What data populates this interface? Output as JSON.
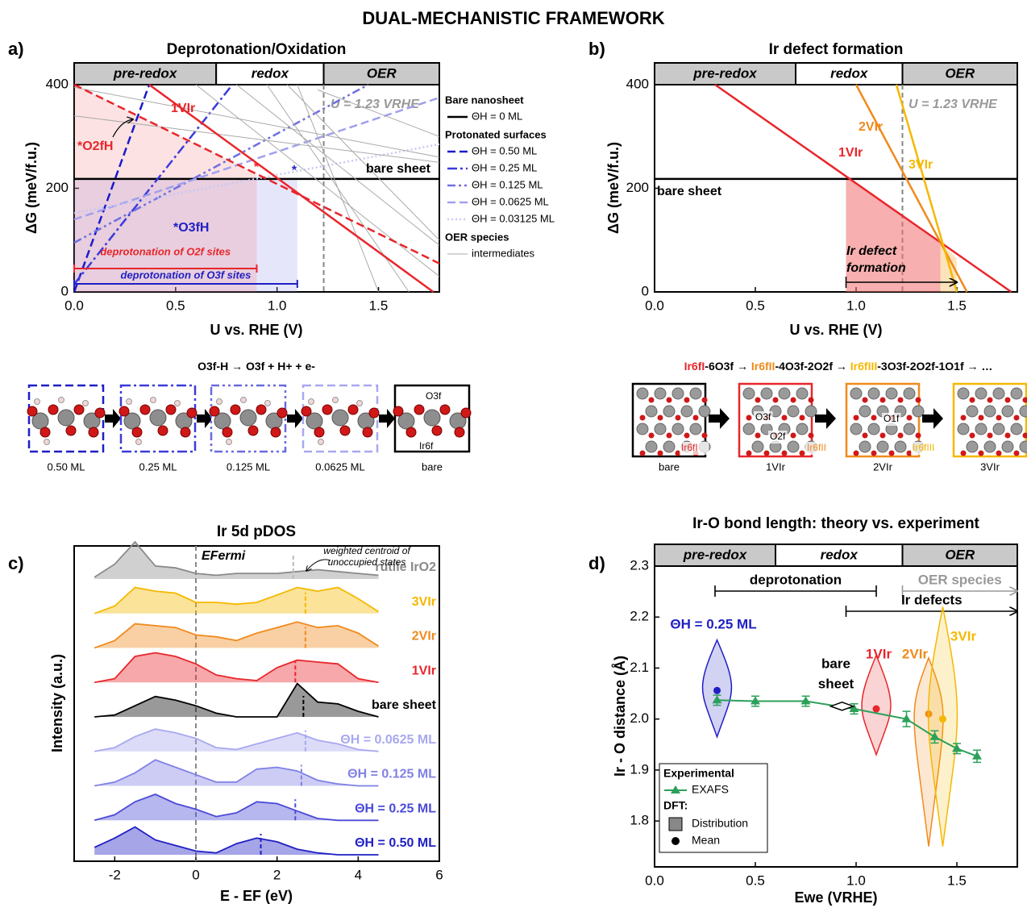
{
  "title": "DUAL-MECHANISTIC FRAMEWORK",
  "chart_data": [
    {
      "type": "line",
      "panel": "a)",
      "title": "Deprotonation/Oxidation",
      "xlabel": "U vs. RHE (V)",
      "ylabel": "ΔG (meV/f.u.)",
      "xlim": [
        0,
        1.8
      ],
      "ylim": [
        0,
        400
      ],
      "xticks": [
        {
          "value": 0,
          "label": "0.0"
        },
        0.5,
        {
          "value": 1,
          "label": "1.0"
        },
        1.5
      ],
      "yticks": [
        0,
        200,
        400
      ],
      "bands": [
        {
          "label": "pre-redox",
          "range": [
            0,
            0.7
          ]
        },
        {
          "label": "redox",
          "range": [
            0.7,
            1.23
          ]
        },
        {
          "label": "OER",
          "range": [
            1.23,
            1.8
          ]
        }
      ],
      "vline": {
        "x": 1.23,
        "label": "U = 1.23 VRHE"
      },
      "series_groups": [
        {
          "title": "Bare nanosheet",
          "series": [
            {
              "name": "ΘH = 0 ML",
              "color": "#000000",
              "dash": "solid",
              "x": [
                0,
                1.8
              ],
              "values": [
                218,
                218
              ]
            }
          ]
        },
        {
          "title": "Protonated surfaces",
          "series": [
            {
              "name": "ΘH = 0.50 ML",
              "color": "#1a1acc",
              "dash": "dashed",
              "x": [
                0,
                0.37
              ],
              "values": [
                0,
                400
              ]
            },
            {
              "name": "ΘH = 0.25 ML",
              "color": "#3b3bdd",
              "dash": "dash-dot",
              "x": [
                0,
                0.78
              ],
              "values": [
                15,
                400
              ]
            },
            {
              "name": "ΘH = 0.125 ML",
              "color": "#7070e0",
              "dash": "dash-dot-dot",
              "x": [
                0,
                1.45
              ],
              "values": [
                95,
                400
              ]
            },
            {
              "name": "ΘH = 0.0625 ML",
              "color": "#a0a0ee",
              "dash": "dashed",
              "x": [
                0,
                1.8
              ],
              "values": [
                140,
                375
              ]
            },
            {
              "name": "ΘH = 0.03125 ML",
              "color": "#c8c8f4",
              "dash": "dotted",
              "x": [
                0,
                1.8
              ],
              "values": [
                152,
                285
              ]
            }
          ]
        },
        {
          "title": "OER species",
          "series": [
            {
              "name": "intermediates",
              "color": "#aaaaaa",
              "dash": "solid",
              "x": [
                0,
                1.8,
                null,
                0,
                1.8,
                null,
                0.6,
                1.8,
                null,
                0.8,
                1.8,
                null,
                0.95,
                1.65,
                null,
                1.05,
                1.8,
                null,
                1.1,
                1.5,
                null,
                1.2,
                1.8
              ],
              "values": [
                395,
                260,
                null,
                340,
                250,
                null,
                400,
                30,
                null,
                400,
                90,
                null,
                400,
                0,
                null,
                400,
                100,
                null,
                400,
                0,
                null,
                390,
                300
              ]
            }
          ]
        }
      ],
      "lines": [
        {
          "label": "1VIr",
          "color": "#e8262b",
          "dash": "solid",
          "x": [
            0.37,
            1.77
          ],
          "values": [
            400,
            0
          ]
        },
        {
          "label": "*O2fH",
          "color": "#e8262b",
          "dash": "dashed",
          "x": [
            0,
            1.8
          ],
          "values": [
            400,
            55
          ]
        }
      ],
      "annotations": [
        {
          "text": "*",
          "color": "#e8262b"
        },
        {
          "text": "*",
          "color": "#1f1fc4"
        },
        {
          "text": "bare sheet",
          "color": "#000000"
        },
        {
          "text": "*O3fH",
          "color": "#1f1fc4"
        }
      ],
      "ranges": [
        {
          "label": "deprotonation of O2f sites",
          "color": "#e8262b",
          "x": [
            0,
            0.9
          ]
        },
        {
          "label": "deprotonation of O3f sites",
          "color": "#1f1fc4",
          "x": [
            0,
            1.1
          ]
        }
      ]
    },
    {
      "type": "line",
      "panel": "b)",
      "title": "Ir defect formation",
      "xlabel": "U vs. RHE (V)",
      "ylabel": "ΔG (meV/f.u.)",
      "xlim": [
        0,
        1.8
      ],
      "ylim": [
        0,
        400
      ],
      "xticks": [
        {
          "value": 0,
          "label": "0.0"
        },
        0.5,
        {
          "value": 1,
          "label": "1.0"
        },
        1.5
      ],
      "yticks": [
        0,
        200,
        400
      ],
      "bands": [
        {
          "label": "pre-redox",
          "range": [
            0,
            0.7
          ]
        },
        {
          "label": "redox",
          "range": [
            0.7,
            1.23
          ]
        },
        {
          "label": "OER",
          "range": [
            1.23,
            1.8
          ]
        }
      ],
      "vline": {
        "x": 1.23,
        "label": "U = 1.23 VRHE"
      },
      "series": [
        {
          "name": "bare sheet",
          "color": "#000000",
          "x": [
            0,
            1.8
          ],
          "values": [
            218,
            218
          ]
        },
        {
          "name": "1VIr",
          "color": "#e8262b",
          "x": [
            0.3,
            1.77
          ],
          "values": [
            400,
            0
          ]
        },
        {
          "name": "2VIr",
          "color": "#f08a1c",
          "x": [
            1.0,
            1.55
          ],
          "values": [
            400,
            0
          ]
        },
        {
          "name": "3VIr",
          "color": "#f5b800",
          "x": [
            1.2,
            1.5
          ],
          "values": [
            400,
            0
          ]
        }
      ],
      "arrow": {
        "label": [
          "Ir defect",
          "formation"
        ],
        "x": [
          0.95,
          1.5
        ]
      }
    },
    {
      "type": "area",
      "panel": "c)",
      "title": "Ir 5d pDOS",
      "xlabel": "E - EF (eV)",
      "ylabel": "Intensity (a.u.)",
      "xlim": [
        -3,
        6
      ],
      "xticks": [
        -2,
        0,
        2,
        4,
        6
      ],
      "vline": {
        "x": 0,
        "label": "EFermi"
      },
      "annotation": [
        "weighted centroid of",
        "unoccupied states"
      ],
      "x": [
        -2.5,
        -2,
        -1.5,
        -1,
        -0.5,
        0,
        0.5,
        1,
        1.5,
        2,
        2.5,
        3,
        3.5,
        4,
        4.5
      ],
      "series": [
        {
          "name": "rutile IrO2",
          "color": "#8a8a8a",
          "centroid": 2.4,
          "values": [
            0.05,
            0.4,
            1.0,
            0.35,
            0.3,
            0.15,
            0.1,
            0.15,
            0.15,
            0.15,
            0.2,
            0.25,
            0.2,
            0.15,
            0.1
          ]
        },
        {
          "name": "3VIr",
          "color": "#f5b800",
          "centroid": 2.7,
          "values": [
            0,
            0.2,
            0.7,
            0.6,
            0.55,
            0.3,
            0.3,
            0.25,
            0.3,
            0.5,
            0.7,
            0.6,
            0.7,
            0.4,
            0.05
          ]
        },
        {
          "name": "2VIr",
          "color": "#f08a1c",
          "centroid": 2.7,
          "values": [
            0,
            0.2,
            0.65,
            0.6,
            0.55,
            0.35,
            0.3,
            0.2,
            0.4,
            0.55,
            0.7,
            0.55,
            0.6,
            0.4,
            0.05
          ]
        },
        {
          "name": "1VIr",
          "color": "#e8262b",
          "centroid": 2.45,
          "values": [
            0,
            0.1,
            0.7,
            0.8,
            0.7,
            0.5,
            0.2,
            0.1,
            0.05,
            0.4,
            0.6,
            0.55,
            0.5,
            0.1,
            0
          ]
        },
        {
          "name": "bare sheet",
          "color": "#000000",
          "centroid": 2.65,
          "values": [
            0,
            0.05,
            0.3,
            0.55,
            0.45,
            0.3,
            0.1,
            0,
            0,
            0,
            0.9,
            0.4,
            0.35,
            0.15,
            0
          ]
        },
        {
          "name": "ΘH = 0.0625 ML",
          "color": "#a8a8f0",
          "centroid": 2.7,
          "values": [
            0,
            0.1,
            0.4,
            0.6,
            0.5,
            0.35,
            0.1,
            0.05,
            0.2,
            0.35,
            0.5,
            0.3,
            0.2,
            0.05,
            0
          ]
        },
        {
          "name": "ΘH = 0.125 ML",
          "color": "#8080e6",
          "centroid": 2.6,
          "values": [
            0,
            0.1,
            0.35,
            0.7,
            0.5,
            0.3,
            0.1,
            0.1,
            0.45,
            0.5,
            0.4,
            0.15,
            0.05,
            0,
            0
          ]
        },
        {
          "name": "ΘH = 0.25 ML",
          "color": "#4a4ad8",
          "centroid": 2.45,
          "values": [
            0,
            0.15,
            0.5,
            0.7,
            0.45,
            0.3,
            0.1,
            0.2,
            0.5,
            0.45,
            0.25,
            0.05,
            0,
            0,
            0
          ]
        },
        {
          "name": "ΘH = 0.50 ML",
          "color": "#1f1fc4",
          "centroid": 1.6,
          "values": [
            0.2,
            0.45,
            0.75,
            0.4,
            0.25,
            0.1,
            0.05,
            0.3,
            0.45,
            0.35,
            0.15,
            0.05,
            0,
            0,
            0
          ]
        }
      ]
    },
    {
      "type": "violin",
      "panel": "d)",
      "title": "Ir-O bond length: theory vs. experiment",
      "xlabel": "Ewe (VRHE)",
      "ylabel": "Ir - O distance (Å)",
      "xlim": [
        0,
        1.8
      ],
      "ylim": [
        1.71,
        2.3
      ],
      "xticks": [
        {
          "value": 0,
          "label": "0.0"
        },
        0.5,
        {
          "value": 1,
          "label": "1.0"
        },
        1.5
      ],
      "yticks": [
        1.8,
        1.9,
        {
          "value": 2,
          "label": "2.0"
        },
        2.1,
        2.2,
        2.3
      ],
      "bands": [
        {
          "label": "pre-redox",
          "range": [
            0,
            0.6
          ]
        },
        {
          "label": "redox",
          "range": [
            0.6,
            1.23
          ]
        },
        {
          "label": "OER",
          "range": [
            1.23,
            1.8
          ]
        }
      ],
      "spans": [
        {
          "label": "deprotonation",
          "x": [
            0.3,
            1.1
          ],
          "color": "#000000",
          "style": "bracket"
        },
        {
          "label": "OER species",
          "x": [
            1.23,
            1.8
          ],
          "color": "#999999",
          "style": "arrow"
        },
        {
          "label": "Ir defects",
          "x": [
            0.95,
            1.8
          ],
          "color": "#000000",
          "style": "arrow"
        }
      ],
      "exafs": {
        "name": "EXAFS",
        "color": "#2ca05a",
        "x": [
          0.31,
          0.5,
          0.75,
          0.99,
          1.25,
          1.39,
          1.5,
          1.6
        ],
        "values": [
          2.037,
          2.035,
          2.035,
          2.02,
          2.0,
          1.965,
          1.942,
          1.927
        ],
        "errors": [
          0.01,
          0.01,
          0.01,
          0.01,
          0.015,
          0.012,
          0.01,
          0.012
        ]
      },
      "bare": {
        "label": [
          "bare",
          "sheet"
        ],
        "x": 0.93,
        "y": 2.025
      },
      "violins": [
        {
          "name": "ΘH = 0.25 ML",
          "color": "#1f1fc4",
          "x": 0.31,
          "range": [
            1.965,
            2.155
          ],
          "mean": 2.056
        },
        {
          "name": "1VIr",
          "color": "#e8262b",
          "x": 1.1,
          "range": [
            1.93,
            2.125
          ],
          "mean": 2.02
        },
        {
          "name": "2VIr",
          "color": "#f08a1c",
          "x": 1.36,
          "range": [
            1.75,
            2.12
          ],
          "mean": 2.01
        },
        {
          "name": "3VIr",
          "color": "#f5b800",
          "x": 1.43,
          "range": [
            1.75,
            2.22
          ],
          "mean": 2.0
        }
      ],
      "legend": {
        "titles": [
          "Experimental",
          "DFT:"
        ],
        "entries": [
          "Distribution",
          "Mean"
        ],
        "corner": "lower-left"
      }
    }
  ],
  "schemes": [
    {
      "equation": [
        {
          "text": "O3f-H → O3f + H+ + e-",
          "color": "#000000"
        }
      ],
      "frames": [
        {
          "caption": "0.50 ML",
          "color": "#1f1fc4",
          "dash": "dashed",
          "labels": []
        },
        {
          "caption": "0.25 ML",
          "color": "#3b3bdd",
          "dash": "dash-dot",
          "labels": []
        },
        {
          "caption": "0.125 ML",
          "color": "#6a6ae0",
          "dash": "dash-dot-dot",
          "labels": []
        },
        {
          "caption": "0.0625 ML",
          "color": "#a8a8f0",
          "dash": "dashed",
          "labels": []
        },
        {
          "caption": "bare",
          "color": "#000000",
          "dash": "solid",
          "labels": [
            {
              "text": "O3f",
              "color": "#000000"
            },
            {
              "text": "Ir6f",
              "color": "#000000"
            }
          ]
        }
      ]
    },
    {
      "equation": [
        {
          "text": "Ir6fI",
          "color": "#e8262b"
        },
        {
          "text": "-6O3f → ",
          "color": "#000000"
        },
        {
          "text": "Ir6fII",
          "color": "#f08a1c"
        },
        {
          "text": "-4O3f-2O2f → ",
          "color": "#000000"
        },
        {
          "text": "Ir6fIII",
          "color": "#f5b800"
        },
        {
          "text": "-3O3f-2O2f-1O1f → …",
          "color": "#000000"
        }
      ],
      "frames": [
        {
          "caption": "bare",
          "color": "#000000",
          "dash": "solid",
          "labels": [
            {
              "text": "Ir6fI",
              "color": "#e8262b"
            }
          ]
        },
        {
          "caption": "1VIr",
          "color": "#e8262b",
          "dash": "solid",
          "labels": [
            {
              "text": "O3f",
              "color": "#000000"
            },
            {
              "text": "O2f",
              "color": "#000000"
            },
            {
              "text": "Ir6fII",
              "color": "#f08a1c"
            }
          ]
        },
        {
          "caption": "2VIr",
          "color": "#f08a1c",
          "dash": "solid",
          "labels": [
            {
              "text": "O1f",
              "color": "#000000"
            },
            {
              "text": "Ir6fIII",
              "color": "#f5b800"
            }
          ]
        },
        {
          "caption": "3VIr",
          "color": "#f5b800",
          "dash": "solid",
          "labels": []
        }
      ]
    }
  ]
}
